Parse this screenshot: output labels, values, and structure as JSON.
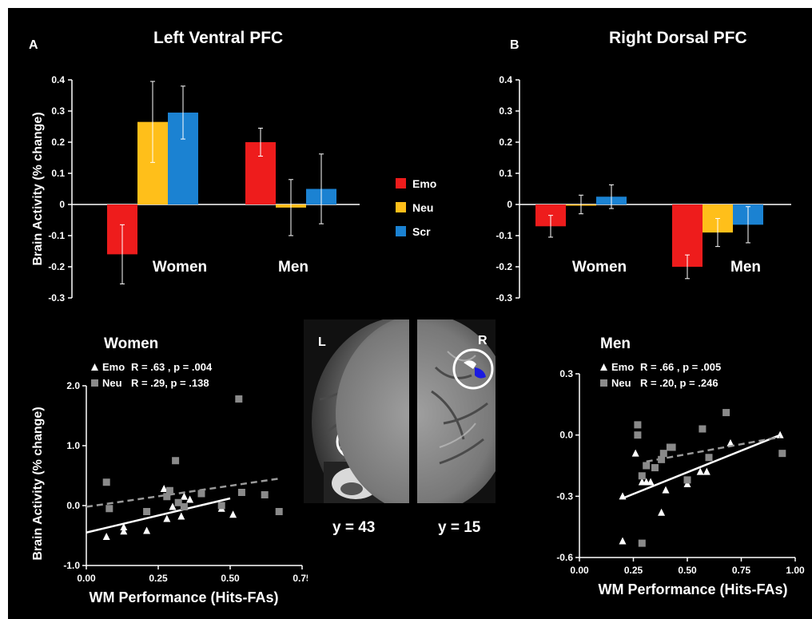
{
  "panels": {
    "a_letter": "A",
    "a_title": "Left Ventral PFC",
    "b_letter": "B",
    "b_title": "Right Dorsal PFC"
  },
  "brain": {
    "left_label": "L",
    "right_label": "R",
    "left_caption": "y = 43",
    "right_caption": "y = 15"
  },
  "colors": {
    "emo": "#ee1c1c",
    "neu": "#ffbf1a",
    "scr": "#1b82d2",
    "neu_scatter": "#8a8a8a",
    "background": "#000000"
  },
  "chart_data": [
    {
      "id": "barA",
      "type": "bar",
      "title": "Left Ventral PFC",
      "ylabel": "Brain Activity (% change)",
      "ylim": [
        -0.3,
        0.4
      ],
      "yticks": [
        "0.4",
        "0.3",
        "0.2",
        "0.1",
        "0",
        "-0.1",
        "-0.2",
        "-0.3"
      ],
      "categories": [
        "Women",
        "Men"
      ],
      "series": [
        {
          "name": "Emo",
          "values": [
            -0.16,
            0.2
          ],
          "errors": [
            0.095,
            0.045
          ]
        },
        {
          "name": "Neu",
          "values": [
            0.265,
            -0.01
          ],
          "errors": [
            0.13,
            0.09
          ]
        },
        {
          "name": "Scr",
          "values": [
            0.295,
            0.05
          ],
          "errors": [
            0.085,
            0.112
          ]
        }
      ],
      "legend": [
        "Emo",
        "Neu",
        "Scr"
      ]
    },
    {
      "id": "barB",
      "type": "bar",
      "title": "Right Dorsal PFC",
      "ylim": [
        -0.3,
        0.4
      ],
      "yticks": [
        "0.4",
        "0.3",
        "0.2",
        "0.1",
        "0",
        "-0.1",
        "-0.2",
        "-0.3"
      ],
      "categories": [
        "Women",
        "Men"
      ],
      "series": [
        {
          "name": "Emo",
          "values": [
            -0.07,
            -0.2
          ],
          "errors": [
            0.035,
            0.038
          ]
        },
        {
          "name": "Neu",
          "values": [
            0.0,
            -0.09
          ],
          "errors": [
            0.03,
            0.045
          ]
        },
        {
          "name": "Scr",
          "values": [
            0.025,
            -0.065
          ],
          "errors": [
            0.038,
            0.058
          ]
        }
      ]
    },
    {
      "id": "scatterWomen",
      "type": "scatter",
      "title": "Women",
      "xlabel": "WM Performance (Hits-FAs)",
      "ylabel": "Brain Activity (% change)",
      "xlim": [
        0,
        0.75
      ],
      "ylim": [
        -1.0,
        2.0
      ],
      "xticks": [
        "0.00",
        "0.25",
        "0.50",
        "0.75"
      ],
      "yticks": [
        "2.0",
        "1.0",
        "0.0",
        "-1.0"
      ],
      "series": [
        {
          "name": "Emo",
          "stat": "R = .63 , p = .004",
          "marker": "triangle",
          "x": [
            0.07,
            0.13,
            0.13,
            0.21,
            0.27,
            0.28,
            0.3,
            0.33,
            0.34,
            0.36,
            0.47,
            0.51
          ],
          "y": [
            -0.52,
            -0.43,
            -0.36,
            -0.42,
            0.28,
            -0.22,
            -0.02,
            -0.18,
            0.15,
            0.1,
            -0.05,
            -0.15
          ],
          "fit": {
            "x": [
              0.0,
              0.5
            ],
            "y": [
              -0.45,
              0.12
            ],
            "style": "solid"
          }
        },
        {
          "name": "Neu",
          "stat": "R = .29,  p = .138",
          "marker": "square",
          "x": [
            0.07,
            0.08,
            0.21,
            0.28,
            0.29,
            0.31,
            0.32,
            0.34,
            0.4,
            0.47,
            0.53,
            0.54,
            0.62,
            0.67
          ],
          "y": [
            0.39,
            -0.05,
            -0.1,
            0.15,
            0.25,
            0.75,
            0.05,
            -0.02,
            0.2,
            0.0,
            1.78,
            0.22,
            0.18,
            -0.1
          ],
          "fit": {
            "x": [
              0.0,
              0.67
            ],
            "y": [
              -0.02,
              0.45
            ],
            "style": "dashed"
          }
        }
      ]
    },
    {
      "id": "scatterMen",
      "type": "scatter",
      "title": "Men",
      "xlabel": "WM Performance (Hits-FAs)",
      "xlim": [
        0,
        1.0
      ],
      "ylim": [
        -0.6,
        0.3
      ],
      "xticks": [
        "0.00",
        "0.25",
        "0.50",
        "0.75",
        "1.00"
      ],
      "yticks": [
        "0.3",
        "0.0",
        "-0.3",
        "-0.6"
      ],
      "series": [
        {
          "name": "Emo",
          "stat": "R = .66 , p = .005",
          "marker": "triangle",
          "x": [
            0.2,
            0.2,
            0.26,
            0.29,
            0.31,
            0.33,
            0.38,
            0.4,
            0.5,
            0.56,
            0.59,
            0.7,
            0.93
          ],
          "y": [
            -0.52,
            -0.3,
            -0.09,
            -0.23,
            -0.23,
            -0.23,
            -0.38,
            -0.27,
            -0.24,
            -0.18,
            -0.18,
            -0.04,
            0.0
          ],
          "fit": {
            "x": [
              0.2,
              0.93
            ],
            "y": [
              -0.31,
              0.0
            ],
            "style": "solid"
          }
        },
        {
          "name": "Neu",
          "stat": "R = .20,  p = .246",
          "marker": "square",
          "x": [
            0.27,
            0.27,
            0.29,
            0.29,
            0.31,
            0.35,
            0.38,
            0.39,
            0.42,
            0.43,
            0.5,
            0.57,
            0.6,
            0.68,
            0.94
          ],
          "y": [
            0.05,
            0.0,
            -0.53,
            -0.2,
            -0.15,
            -0.16,
            -0.12,
            -0.09,
            -0.06,
            -0.06,
            -0.22,
            0.03,
            -0.11,
            0.11,
            -0.09
          ],
          "fit": {
            "x": [
              0.31,
              0.93
            ],
            "y": [
              -0.13,
              -0.01
            ],
            "style": "dashed"
          }
        }
      ]
    }
  ]
}
